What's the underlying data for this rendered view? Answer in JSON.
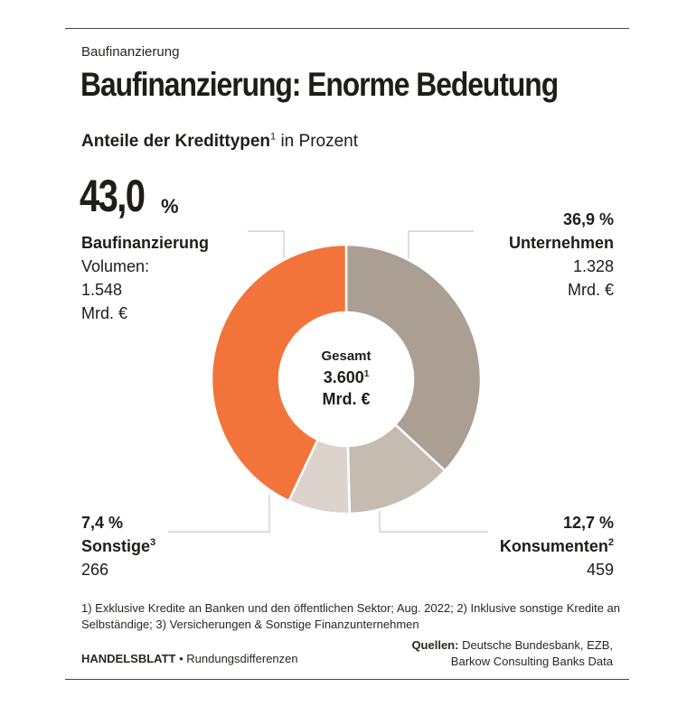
{
  "header": {
    "kicker": "Baufinanzierung",
    "title": "Baufinanzierung: Enorme Bedeutung",
    "subtitle_bold": "Anteile der Kredittypen",
    "subtitle_sup": "1",
    "subtitle_rest": " in Prozent"
  },
  "center": {
    "line1": "Gesamt",
    "line2": "3.600",
    "line2_sup": "1",
    "line3": "Mrd. €"
  },
  "labels": {
    "bau": {
      "pct": "43,0",
      "unit": "%",
      "name": "Baufinanzierung",
      "line1": "Volumen:",
      "line2": "1.548",
      "line3": "Mrd. €"
    },
    "unt": {
      "pct": "36,9 %",
      "name": "Unternehmen",
      "line1": "1.328",
      "line2": "Mrd. €"
    },
    "kon": {
      "pct": "12,7 %",
      "name": "Konsumenten",
      "sup": "2",
      "line1": "459"
    },
    "son": {
      "pct": "7,4 %",
      "name": "Sonstige",
      "sup": "3",
      "line1": "266"
    }
  },
  "footer": {
    "footnote": "1) Exklusive Kredite an Banken und den öffentlichen Sektor; Aug. 2022; 2) Inklusive sonstige Kredite an Selbständige; 3) Versicherungen & Sonstige Finanzunternehmen",
    "brand": "HANDELSBLATT",
    "brand_rest": " • Rundungsdifferenzen",
    "sources_label": "Quellen:",
    "sources_line1": " Deutsche Bundesbank, EZB,",
    "sources_line2": "Barkow Consulting Banks Data"
  },
  "chart_data": {
    "type": "pie",
    "variant": "donut",
    "title": "Baufinanzierung: Enorme Bedeutung",
    "unit": "Prozent",
    "categories": [
      "Unternehmen",
      "Konsumenten",
      "Sonstige",
      "Baufinanzierung"
    ],
    "values": [
      36.9,
      12.7,
      7.4,
      43.0
    ],
    "volumes_mrd_eur": [
      1328,
      459,
      266,
      1548
    ],
    "total_mrd_eur": 3600,
    "colors": [
      "#ab9f93",
      "#c6bbb1",
      "#dcd3cd",
      "#f2743a"
    ]
  }
}
